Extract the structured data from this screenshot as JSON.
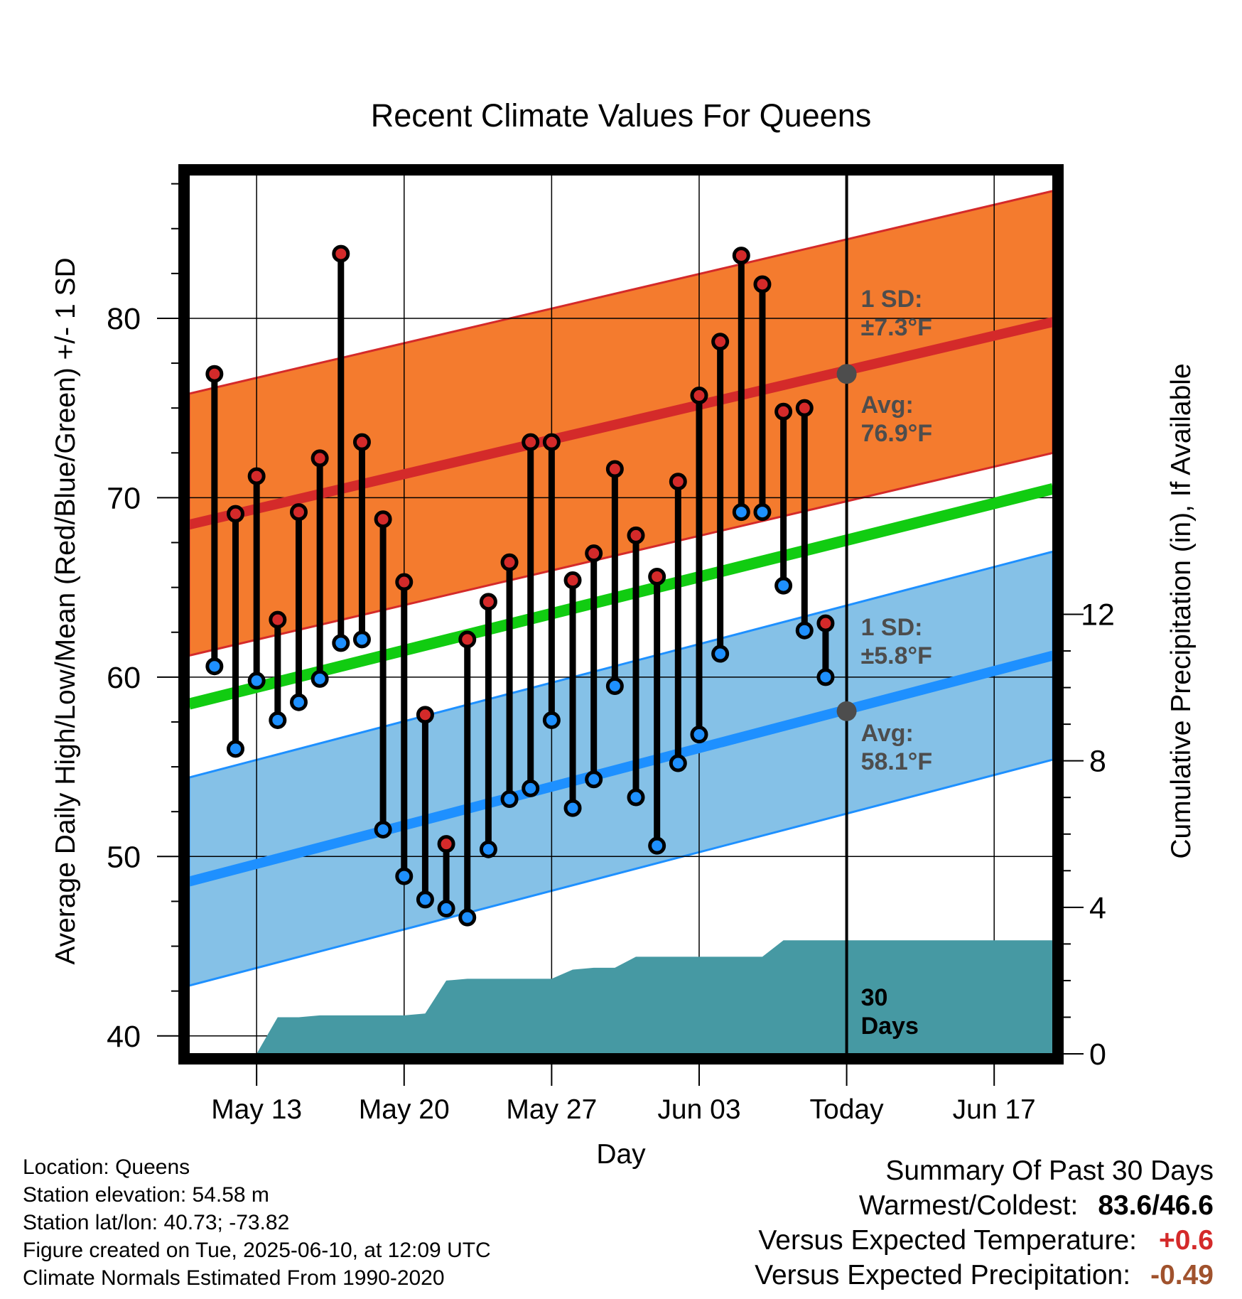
{
  "chart_data": {
    "type": "line",
    "title": "Recent Climate Values For Queens",
    "xlabel": "Day",
    "ylabel_left": "Average Daily High/Low/Mean (Red/Blue/Green) +/- 1 SD",
    "ylabel_right": "Cumulative Precipitation (in), If Available",
    "ylim": [
      39,
      88
    ],
    "ylim_right": [
      0,
      24
    ],
    "y_ticks": [
      40,
      50,
      60,
      70,
      80
    ],
    "y_ticks_right": [
      0,
      4,
      8,
      12
    ],
    "x_ticks": [
      {
        "date": "2025-05-13",
        "label": "May 13"
      },
      {
        "date": "2025-05-20",
        "label": "May 20"
      },
      {
        "date": "2025-05-27",
        "label": "May 27"
      },
      {
        "date": "2025-06-03",
        "label": "Jun 03"
      },
      {
        "date": "2025-06-10",
        "label": "Today"
      },
      {
        "date": "2025-06-17",
        "label": "Jun 17"
      }
    ],
    "x_range": [
      "2025-05-09T19:00",
      "2025-06-19T19:00"
    ],
    "today": "2025-06-10",
    "series": [
      {
        "name": "High",
        "color": "#d42a2a",
        "dates": [
          "2025-05-11",
          "2025-05-12",
          "2025-05-13",
          "2025-05-14",
          "2025-05-15",
          "2025-05-16",
          "2025-05-17",
          "2025-05-18",
          "2025-05-19",
          "2025-05-20",
          "2025-05-21",
          "2025-05-22",
          "2025-05-23",
          "2025-05-24",
          "2025-05-25",
          "2025-05-26",
          "2025-05-27",
          "2025-05-28",
          "2025-05-29",
          "2025-05-30",
          "2025-05-31",
          "2025-06-01",
          "2025-06-02",
          "2025-06-03",
          "2025-06-04",
          "2025-06-05",
          "2025-06-06",
          "2025-06-07",
          "2025-06-08",
          "2025-06-09"
        ],
        "values": [
          76.9,
          69.1,
          71.2,
          63.2,
          69.2,
          72.2,
          83.6,
          73.1,
          68.8,
          65.3,
          57.9,
          50.7,
          62.1,
          64.2,
          66.4,
          73.1,
          73.1,
          65.4,
          66.9,
          71.6,
          67.9,
          65.6,
          70.9,
          75.7,
          78.7,
          83.5,
          81.9,
          74.8,
          75.0,
          63.0
        ]
      },
      {
        "name": "Low",
        "color": "#1e90ff",
        "dates": [
          "2025-05-11",
          "2025-05-12",
          "2025-05-13",
          "2025-05-14",
          "2025-05-15",
          "2025-05-16",
          "2025-05-17",
          "2025-05-18",
          "2025-05-19",
          "2025-05-20",
          "2025-05-21",
          "2025-05-22",
          "2025-05-23",
          "2025-05-24",
          "2025-05-25",
          "2025-05-26",
          "2025-05-27",
          "2025-05-28",
          "2025-05-29",
          "2025-05-30",
          "2025-05-31",
          "2025-06-01",
          "2025-06-02",
          "2025-06-03",
          "2025-06-04",
          "2025-06-05",
          "2025-06-06",
          "2025-06-07",
          "2025-06-08",
          "2025-06-09"
        ],
        "values": [
          60.6,
          56.0,
          59.8,
          57.6,
          58.6,
          59.9,
          61.9,
          62.1,
          51.5,
          48.9,
          47.6,
          47.1,
          46.6,
          50.4,
          53.2,
          53.8,
          57.6,
          52.7,
          54.3,
          59.5,
          53.3,
          50.6,
          55.2,
          56.8,
          61.3,
          69.2,
          69.2,
          65.1,
          62.6,
          60.0
        ]
      }
    ],
    "normals": {
      "high_avg": {
        "color": "#d42a2a",
        "start": 68.5,
        "end": 79.8
      },
      "high_sd": 7.3,
      "high_band_color": "#f47b2e",
      "mean_avg": {
        "color": "#11cc11",
        "start": 58.5,
        "end": 70.5
      },
      "low_avg": {
        "color": "#1e90ff",
        "start": 48.6,
        "end": 61.2
      },
      "low_sd": 5.8,
      "low_band_color": "#85c1e7"
    },
    "precip": {
      "color": "#4699a3",
      "dates": [
        "2025-05-13",
        "2025-05-14",
        "2025-05-15",
        "2025-05-16",
        "2025-05-17",
        "2025-05-18",
        "2025-05-19",
        "2025-05-20",
        "2025-05-21",
        "2025-05-22",
        "2025-05-23",
        "2025-05-24",
        "2025-05-25",
        "2025-05-26",
        "2025-05-27",
        "2025-05-28",
        "2025-05-29",
        "2025-05-30",
        "2025-05-31",
        "2025-06-01",
        "2025-06-02",
        "2025-06-03",
        "2025-06-04",
        "2025-06-05",
        "2025-06-06",
        "2025-06-07",
        "2025-06-08",
        "2025-06-09",
        "2025-06-10",
        "2025-06-19"
      ],
      "values": [
        0,
        1.0,
        1.0,
        1.05,
        1.05,
        1.05,
        1.05,
        1.05,
        1.1,
        2.0,
        2.05,
        2.05,
        2.05,
        2.05,
        2.05,
        2.3,
        2.35,
        2.35,
        2.65,
        2.65,
        2.65,
        2.65,
        2.65,
        2.65,
        2.65,
        3.1,
        3.1,
        3.1,
        3.1,
        3.1
      ]
    },
    "annotations": {
      "high_sd_label": [
        "1 SD:",
        "±7.3°F"
      ],
      "high_avg_label": [
        "Avg:",
        "76.9°F"
      ],
      "low_sd_label": [
        "1 SD:",
        "±5.8°F"
      ],
      "low_avg_label": [
        "Avg:",
        "58.1°F"
      ],
      "today_high_avg": 76.9,
      "today_low_avg": 58.1,
      "window_label": [
        "30",
        "Days"
      ]
    }
  },
  "info": {
    "location": "Location: Queens",
    "elevation": "Station elevation: 54.58 m",
    "latlon": "Station lat/lon: 40.73; -73.82",
    "created": "Figure created on Tue, 2025-06-10, at 12:09 UTC",
    "normals": "Climate Normals Estimated From 1990-2020"
  },
  "summary": {
    "title": "Summary Of Past 30 Days",
    "warm_cold_label": "Warmest/Coldest:",
    "warm_cold_value": "83.6/46.6",
    "temp_label": "Versus Expected Temperature:",
    "temp_value": "+0.6",
    "temp_color": "#d42a2a",
    "precip_label": "Versus Expected Precipitation:",
    "precip_value": "-0.49",
    "precip_color": "#a0522d"
  }
}
